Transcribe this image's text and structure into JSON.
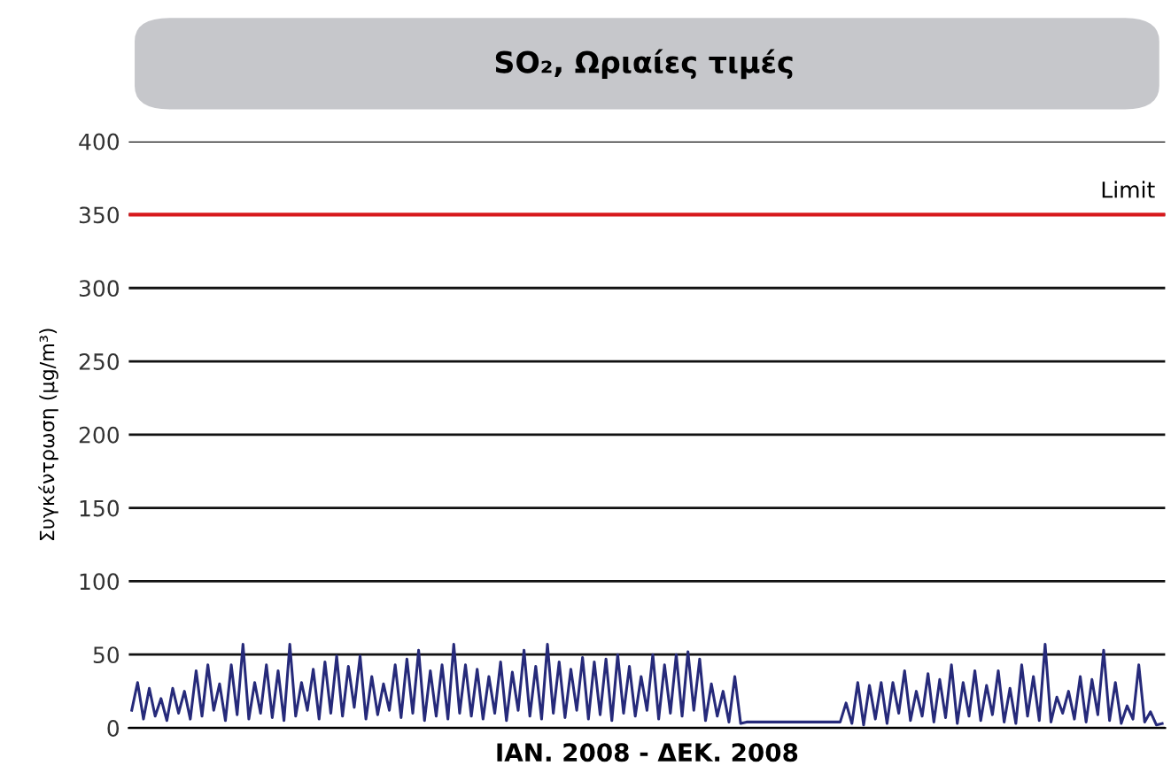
{
  "chart_data": {
    "type": "line",
    "title": "SO₂, Ωριαίες τιμές",
    "ylabel": "Συγκέντρωση (μg/m³)",
    "xlabel": "ΙΑΝ. 2008 - ΔΕΚ. 2008",
    "categories": [
      null,
      null,
      null,
      null,
      null,
      null,
      null,
      null,
      null,
      null,
      null,
      null,
      null,
      null,
      null,
      null,
      null,
      null,
      null,
      null,
      null,
      null,
      null,
      null,
      null,
      null,
      null,
      null,
      null,
      null,
      null,
      null,
      null,
      null,
      null,
      null,
      null,
      null,
      null,
      null,
      null,
      null,
      null,
      null,
      null,
      null,
      null,
      null,
      null,
      null,
      null,
      null,
      null,
      null,
      null,
      null,
      null,
      null,
      null,
      null,
      null,
      null,
      null,
      null,
      null,
      null,
      null,
      null,
      null,
      null,
      null,
      null,
      null,
      null,
      null,
      null,
      null,
      null,
      null,
      null,
      null,
      null,
      null,
      null,
      null,
      null,
      null,
      null,
      null,
      null,
      null,
      null,
      null,
      null,
      null,
      null,
      null,
      null,
      null,
      null,
      null,
      null,
      null,
      null,
      null,
      null,
      null,
      null,
      null,
      null,
      null,
      null,
      null,
      null,
      null,
      null,
      null,
      null,
      null,
      null,
      null,
      null,
      null,
      null,
      null,
      null,
      null,
      null,
      null,
      null,
      null,
      null,
      null,
      null,
      null,
      null,
      null,
      null,
      null,
      null,
      null,
      null,
      null,
      null,
      null,
      null,
      null,
      null,
      null,
      null,
      null,
      null,
      null,
      null,
      null,
      null,
      null,
      null,
      null,
      null,
      null,
      null,
      null,
      null,
      null,
      null,
      null,
      null,
      null,
      null,
      null,
      null,
      null,
      null,
      null,
      null,
      null
    ],
    "series": [
      {
        "color": "#262a7a",
        "values": [
          12,
          31,
          6,
          27,
          8,
          20,
          5,
          27,
          10,
          25,
          6,
          39,
          8,
          43,
          12,
          30,
          5,
          43,
          9,
          57,
          6,
          31,
          10,
          43,
          7,
          39,
          5,
          57,
          8,
          31,
          12,
          40,
          6,
          45,
          10,
          49,
          8,
          42,
          14,
          49,
          6,
          35,
          9,
          30,
          12,
          43,
          7,
          47,
          10,
          53,
          5,
          39,
          8,
          43,
          6,
          57,
          10,
          43,
          8,
          40,
          6,
          35,
          10,
          45,
          5,
          38,
          12,
          53,
          8,
          42,
          6,
          57,
          10,
          45,
          7,
          40,
          12,
          48,
          6,
          45,
          9,
          47,
          5,
          50,
          10,
          42,
          8,
          35,
          12,
          50,
          6,
          43,
          10,
          50,
          8,
          52,
          12,
          47,
          5,
          30,
          8,
          25,
          4,
          35,
          3,
          4,
          4,
          4,
          4,
          4,
          4,
          4,
          4,
          4,
          4,
          4,
          4,
          4,
          4,
          4,
          4,
          4,
          17,
          3,
          31,
          2,
          29,
          6,
          31,
          3,
          31,
          10,
          39,
          5,
          25,
          8,
          37,
          4,
          33,
          7,
          43,
          3,
          31,
          8,
          39,
          5,
          29,
          9,
          39,
          4,
          27,
          3,
          43,
          8,
          35,
          5,
          57,
          4,
          21,
          10,
          25,
          6,
          35,
          4,
          33,
          9,
          53,
          5,
          31,
          3,
          15,
          6,
          43,
          4,
          11,
          2,
          3
        ]
      }
    ],
    "ylim": [
      0,
      400
    ],
    "yticks": [
      0,
      50,
      100,
      150,
      200,
      250,
      300,
      350,
      400
    ],
    "grid": "y",
    "tick_labels": "y",
    "line_style": "solid",
    "marker": "none",
    "ref_lines": [
      {
        "axis": "y",
        "value": 350,
        "label": "Limit",
        "color": "#d7191c"
      }
    ]
  }
}
